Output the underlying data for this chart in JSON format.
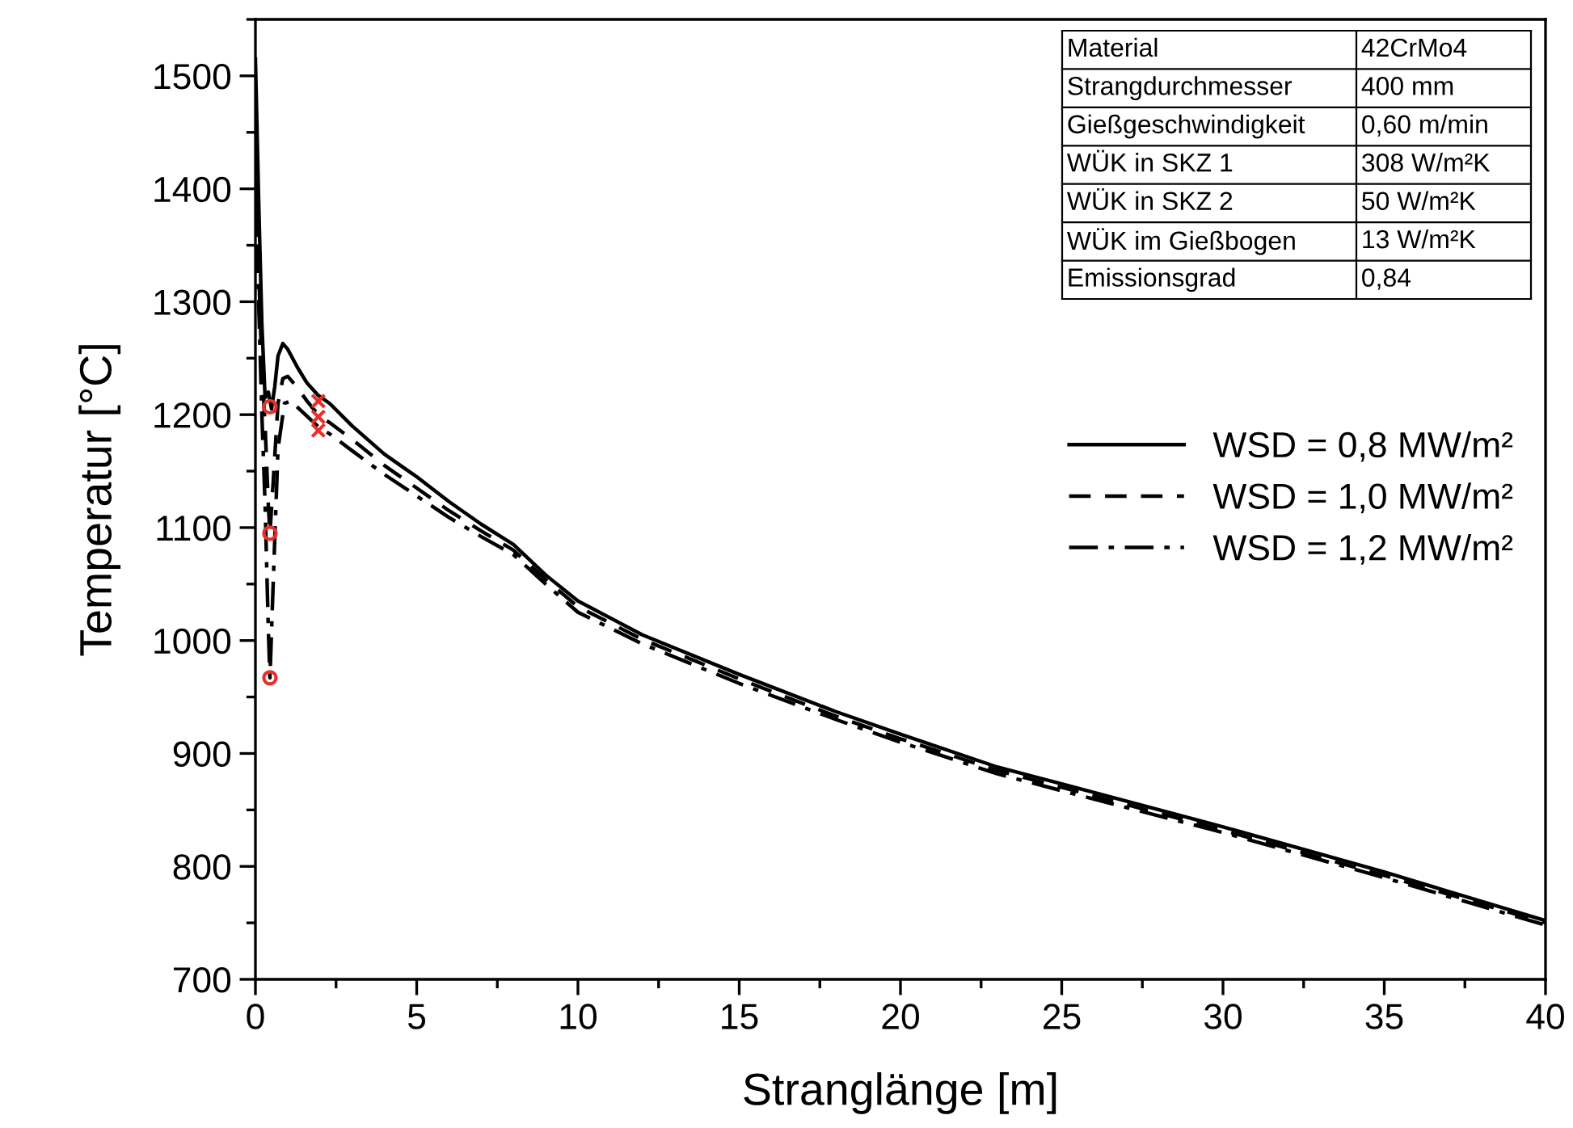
{
  "chart_data": {
    "type": "line",
    "xlabel": "Stranglänge [m]",
    "ylabel": "Temperatur [°C]",
    "xlim": [
      0,
      40
    ],
    "xticks": [
      0,
      5,
      10,
      15,
      20,
      25,
      30,
      35,
      40
    ],
    "ylim": [
      700,
      1550
    ],
    "yticks": [
      700,
      800,
      900,
      1000,
      1100,
      1200,
      1300,
      1400,
      1500
    ],
    "grid": false,
    "legend": "right",
    "series": [
      {
        "name": "WSD = 0,8 MW/m²",
        "color": "#000000",
        "line_style": "solid",
        "marker": "none",
        "x": [
          0,
          0.1,
          0.2,
          0.3,
          0.4,
          0.5,
          0.6,
          0.7,
          0.85,
          1.0,
          1.3,
          1.6,
          1.95,
          2.3,
          3,
          4,
          5,
          6,
          7,
          8,
          9,
          10,
          12,
          15,
          18,
          20,
          23,
          25,
          30,
          35,
          40
        ],
        "values": [
          1515,
          1390,
          1280,
          1215,
          1220,
          1205,
          1225,
          1252,
          1263,
          1258,
          1242,
          1228,
          1217,
          1210,
          1190,
          1165,
          1145,
          1123,
          1103,
          1085,
          1058,
          1035,
          1005,
          970,
          937,
          917,
          888,
          873,
          835,
          795,
          752
        ]
      },
      {
        "name": "WSD = 1,0 MW/m²",
        "color": "#000000",
        "line_style": "dashed",
        "marker": "none",
        "x": [
          0,
          0.1,
          0.2,
          0.3,
          0.4,
          0.45,
          0.55,
          0.7,
          0.85,
          1.0,
          1.3,
          1.6,
          2.0,
          2.3,
          3,
          4,
          5,
          6,
          7,
          8,
          9,
          10,
          12,
          15,
          18,
          20,
          23,
          25,
          30,
          35,
          40
        ],
        "values": [
          1440,
          1330,
          1240,
          1190,
          1120,
          1095,
          1140,
          1210,
          1232,
          1234,
          1224,
          1212,
          1198,
          1193,
          1178,
          1155,
          1135,
          1115,
          1097,
          1080,
          1054,
          1030,
          1001,
          966,
          933,
          913,
          885,
          870,
          832,
          792,
          750
        ]
      },
      {
        "name": "WSD = 1,2 MW/m²",
        "color": "#000000",
        "line_style": "dashdot",
        "marker": "none",
        "x": [
          0,
          0.1,
          0.2,
          0.3,
          0.4,
          0.45,
          0.55,
          0.7,
          0.9,
          1.1,
          1.4,
          1.7,
          2.0,
          2.3,
          3,
          4,
          5,
          6,
          7,
          8,
          9,
          10,
          12,
          15,
          18,
          20,
          23,
          25,
          30,
          35,
          40
        ],
        "values": [
          1400,
          1300,
          1200,
          1120,
          1010,
          967,
          1050,
          1170,
          1210,
          1212,
          1204,
          1196,
          1188,
          1183,
          1168,
          1147,
          1128,
          1109,
          1092,
          1076,
          1050,
          1025,
          997,
          962,
          930,
          910,
          882,
          867,
          830,
          790,
          748
        ]
      },
      {
        "type": "scatter",
        "color": "#e8302a",
        "marker": "circle",
        "x": [
          0.45,
          0.45,
          0.45
        ],
        "values": [
          1207,
          1095,
          967
        ]
      },
      {
        "type": "scatter",
        "color": "#e8302a",
        "marker": "cross",
        "x": [
          1.95,
          1.95,
          1.95
        ],
        "values": [
          1212,
          1198,
          1186
        ]
      }
    ],
    "annotations": [
      "Material",
      "42CrMo4",
      "Strangdurchmesser",
      "400 mm",
      "Gießgeschwindigkeit",
      "0,60 m/min",
      "WÜK in SKZ 1",
      "308 W/m²K",
      "WÜK in SKZ 2",
      "50 W/m²K",
      "WÜK im Gießbogen",
      "13 W/m²K",
      "Emissionsgrad",
      "0,84"
    ]
  }
}
